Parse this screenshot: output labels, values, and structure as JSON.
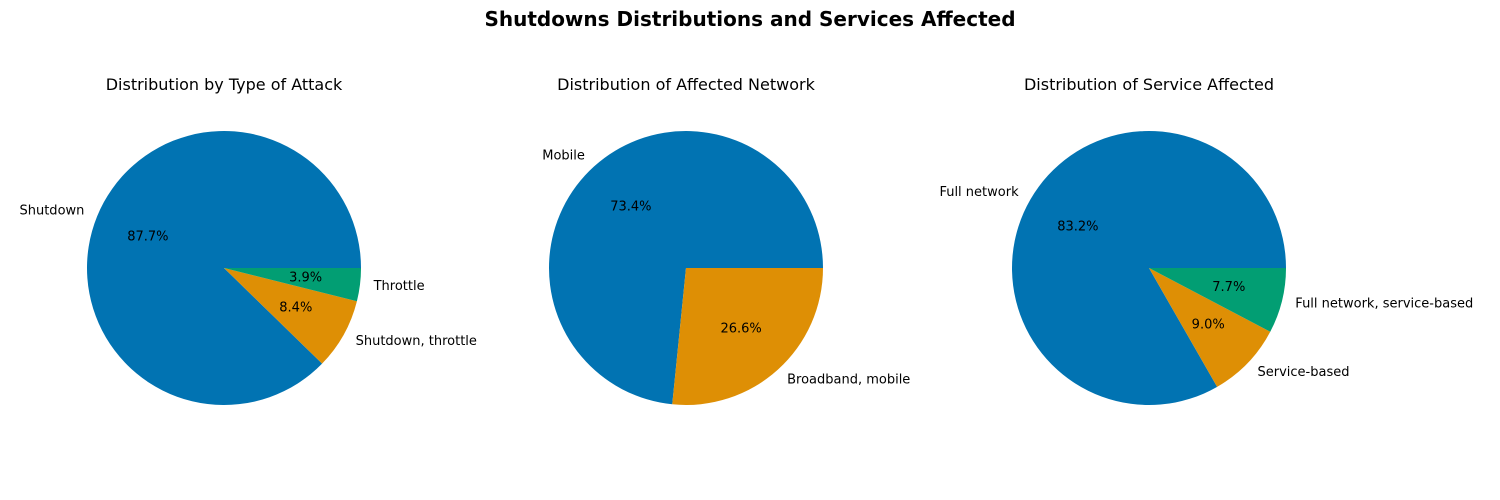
{
  "figure": {
    "suptitle": "Shutdowns Distributions and Services Affected"
  },
  "chart_data": [
    {
      "type": "pie",
      "title": "Distribution by Type of Attack",
      "slices": [
        {
          "label": "Shutdown",
          "value": 87.7,
          "pct_label": "87.7%",
          "color": "#0173b2"
        },
        {
          "label": "Shutdown, throttle",
          "value": 8.4,
          "pct_label": "8.4%",
          "color": "#de8f05"
        },
        {
          "label": "Throttle",
          "value": 3.9,
          "pct_label": "3.9%",
          "color": "#029e73"
        }
      ]
    },
    {
      "type": "pie",
      "title": "Distribution of Affected Network",
      "slices": [
        {
          "label": "Mobile",
          "value": 73.4,
          "pct_label": "73.4%",
          "color": "#0173b2"
        },
        {
          "label": "Broadband, mobile",
          "value": 26.6,
          "pct_label": "26.6%",
          "color": "#de8f05"
        }
      ]
    },
    {
      "type": "pie",
      "title": "Distribution of Service Affected",
      "slices": [
        {
          "label": "Full network",
          "value": 83.2,
          "pct_label": "83.2%",
          "color": "#0173b2"
        },
        {
          "label": "Service-based",
          "value": 9.0,
          "pct_label": "9.0%",
          "color": "#de8f05"
        },
        {
          "label": "Full network, service-based",
          "value": 7.7,
          "pct_label": "7.7%",
          "color": "#029e73"
        }
      ]
    }
  ]
}
